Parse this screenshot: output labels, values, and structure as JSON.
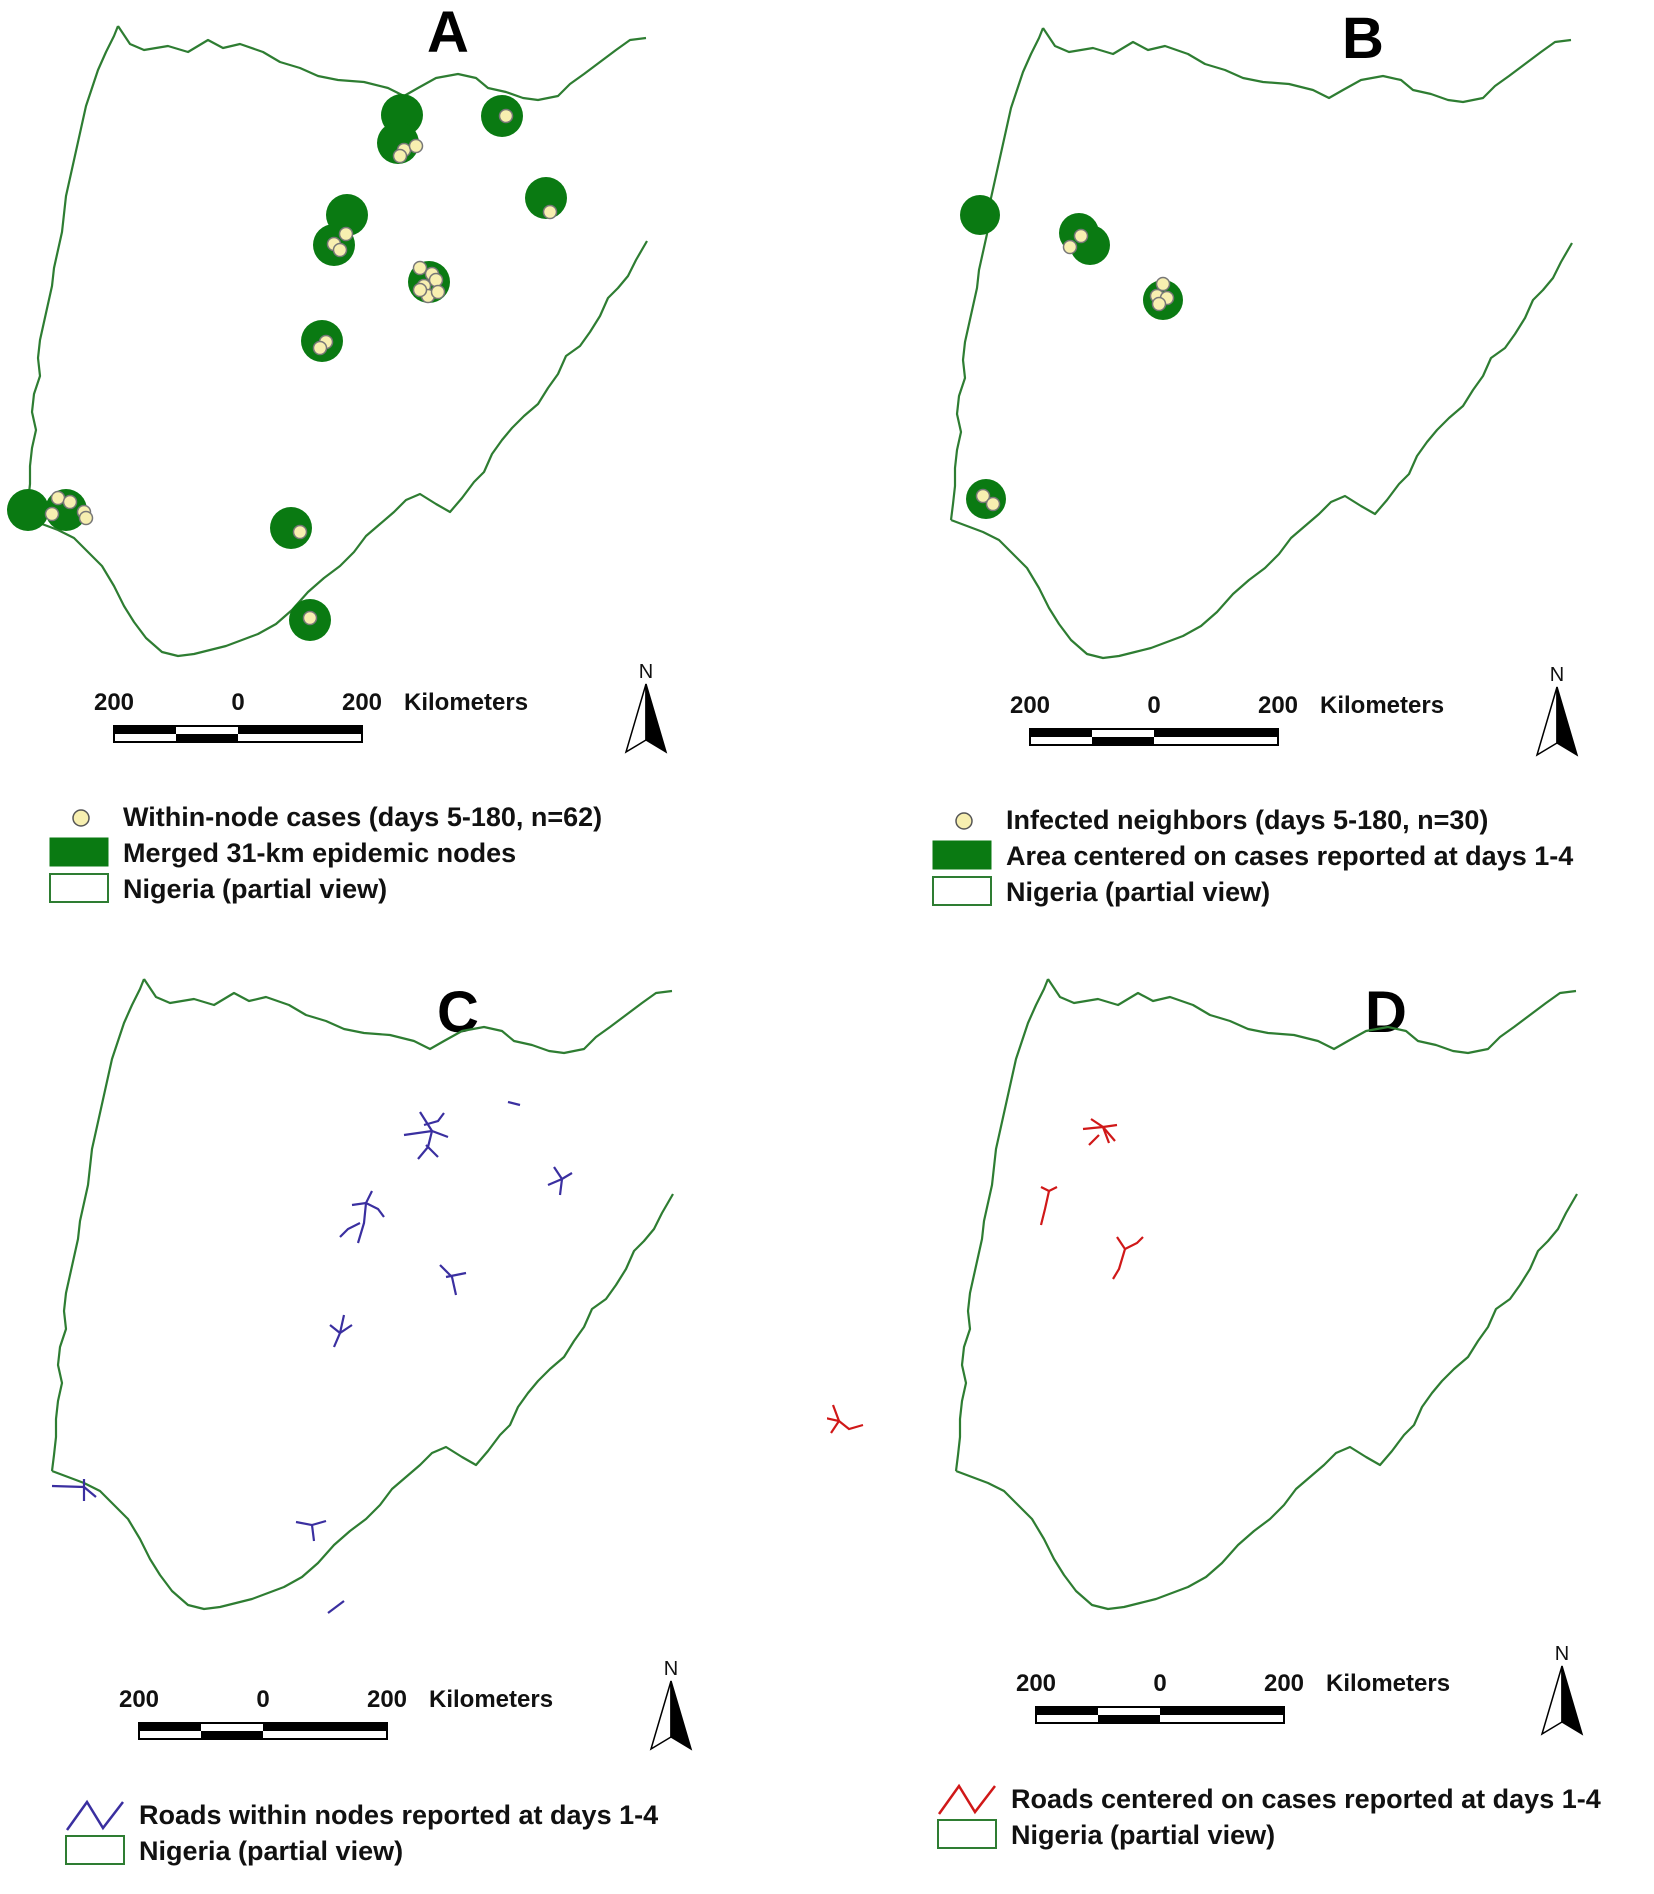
{
  "panels": [
    {
      "id": "A",
      "label": "A",
      "scalebar": {
        "left": "200",
        "center": "0",
        "right": "200",
        "unit": "Kilometers"
      },
      "north": "N",
      "legend": [
        {
          "symbol": "dot",
          "text": "Within-node cases (days 5-180, n=62)"
        },
        {
          "symbol": "green-fill",
          "text": "Merged 31-km epidemic nodes"
        },
        {
          "symbol": "outline",
          "text": "Nigeria  (partial view)"
        }
      ]
    },
    {
      "id": "B",
      "label": "B",
      "scalebar": {
        "left": "200",
        "center": "0",
        "right": "200",
        "unit": "Kilometers"
      },
      "north": "N",
      "legend": [
        {
          "symbol": "dot",
          "text": "Infected neighbors (days 5-180, n=30)"
        },
        {
          "symbol": "green-fill",
          "text": "Area centered on cases reported at days 1-4"
        },
        {
          "symbol": "outline",
          "text": "Nigeria  (partial view)"
        }
      ]
    },
    {
      "id": "C",
      "label": "C",
      "scalebar": {
        "left": "200",
        "center": "0",
        "right": "200",
        "unit": "Kilometers"
      },
      "north": "N",
      "legend": [
        {
          "symbol": "road-blue",
          "text": "Roads within nodes reported at days 1-4"
        },
        {
          "symbol": "outline",
          "text": "Nigeria  (partial view)"
        }
      ]
    },
    {
      "id": "D",
      "label": "D",
      "scalebar": {
        "left": "200",
        "center": "0",
        "right": "200",
        "unit": "Kilometers"
      },
      "north": "N",
      "legend": [
        {
          "symbol": "road-red",
          "text": "Roads centered on cases reported at days 1-4"
        },
        {
          "symbol": "outline",
          "text": "Nigeria  (partial view)"
        }
      ]
    }
  ],
  "colors": {
    "boundary": "#2e7d32",
    "node": "#0a7a12",
    "case_dot": "#f7efb0",
    "road_c": "#3a2fa0",
    "road_d": "#d01818"
  }
}
